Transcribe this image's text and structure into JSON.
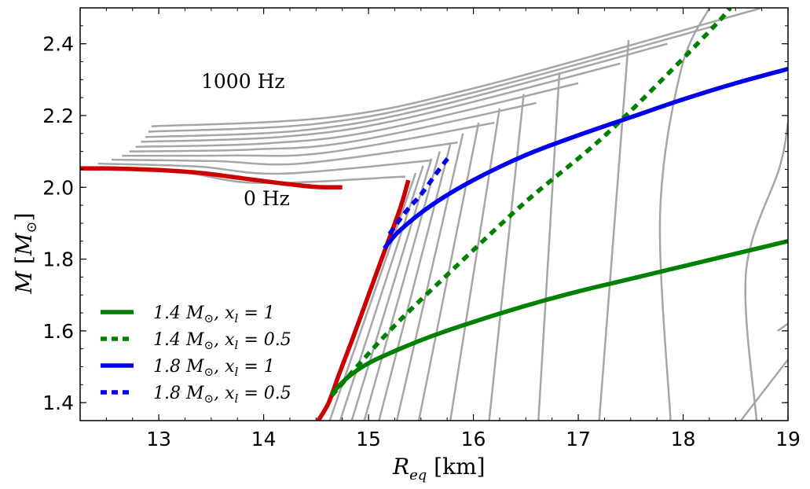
{
  "chart_data": {
    "type": "line",
    "title": "",
    "xlabel": "R_eq [km]",
    "ylabel": "M [M_⊙]",
    "xlabel_main": "R",
    "xlabel_sub": "eq",
    "xlabel_unit": " [km]",
    "ylabel_main": "M",
    "ylabel_unit_open": " [",
    "ylabel_unit": "M",
    "ylabel_unit_sub": "⊙",
    "ylabel_unit_close": "]",
    "xlim": [
      12.25,
      19.0
    ],
    "ylim": [
      1.35,
      2.5
    ],
    "x_ticks": [
      13,
      14,
      15,
      16,
      17,
      18,
      19
    ],
    "y_ticks": [
      1.4,
      1.6,
      1.8,
      2.0,
      2.2,
      2.4
    ],
    "x_tick_labels": [
      "13",
      "14",
      "15",
      "16",
      "17",
      "18",
      "19"
    ],
    "y_tick_labels": [
      "1.4",
      "1.6",
      "1.8",
      "2.0",
      "2.2",
      "2.4"
    ],
    "grid": false,
    "legend_position": "bottom-left",
    "annotations": [
      {
        "text": "1000 Hz",
        "x": 13.4,
        "y": 2.27
      },
      {
        "text": "0 Hz",
        "x": 13.8,
        "y": 1.97
      }
    ],
    "mass_radius_curves": {
      "name": "constant-frequency sequences (0–1000 Hz)",
      "color": "#a6a6a6",
      "bottom_end_x": [
        12.25,
        12.42,
        12.55,
        12.65,
        12.72,
        12.78,
        12.83,
        12.87,
        12.9,
        12.93
      ],
      "bottom_end_y": [
        2.056,
        2.066,
        2.077,
        2.088,
        2.1,
        2.113,
        2.127,
        2.14,
        2.155,
        2.17
      ],
      "top_end_x": [
        15.35,
        15.6,
        15.85,
        16.2,
        16.6,
        17.0,
        17.4,
        17.85,
        18.3,
        18.75
      ],
      "top_end_y": [
        2.03,
        2.075,
        2.125,
        2.18,
        2.235,
        2.29,
        2.345,
        2.4,
        2.45,
        2.5
      ]
    },
    "constant_mass_curves": {
      "name": "constant rest-mass sequences",
      "color": "#a6a6a6",
      "base_x": [
        14.63,
        14.73,
        14.84,
        14.96,
        15.1,
        15.27,
        15.48,
        15.78,
        16.15,
        16.62,
        17.2,
        17.88,
        18.7
      ],
      "base_y": [
        1.35,
        1.35,
        1.35,
        1.35,
        1.35,
        1.35,
        1.35,
        1.35,
        1.35,
        1.35,
        1.35,
        1.35,
        1.35
      ],
      "top_x": [
        15.45,
        15.52,
        15.6,
        15.68,
        15.78,
        15.9,
        16.05,
        16.25,
        16.48,
        16.82,
        17.48,
        18.25,
        19.0
      ],
      "top_y": [
        2.04,
        2.06,
        2.08,
        2.1,
        2.12,
        2.15,
        2.18,
        2.22,
        2.26,
        2.32,
        2.41,
        2.5,
        2.18
      ]
    },
    "series": [
      {
        "name": "0 Hz (non-rotating)",
        "color": "#cc0000",
        "style": "solid",
        "x": [
          12.25,
          12.6,
          13.0,
          13.4,
          13.8,
          14.2,
          14.5,
          14.75
        ],
        "y": [
          2.053,
          2.052,
          2.048,
          2.04,
          2.025,
          2.01,
          2.001,
          2.0
        ]
      },
      {
        "name": "0 Hz lower branch",
        "color": "#cc0000",
        "style": "solid",
        "x": [
          14.52,
          14.62,
          14.72,
          14.85,
          15.0,
          15.15,
          15.3,
          15.38
        ],
        "y": [
          1.35,
          1.4,
          1.48,
          1.58,
          1.7,
          1.82,
          1.94,
          2.02
        ]
      },
      {
        "name": "1.4 M_⊙, x_l = 1",
        "label_main": "1.4 ",
        "label_m": "M",
        "label_sub": "⊙",
        "label_sep": ", ",
        "label_x": "x",
        "label_xsub": "l",
        "label_eq": " = 1",
        "color": "#008000",
        "style": "solid",
        "x": [
          14.65,
          14.8,
          15.0,
          15.3,
          15.6,
          16.0,
          16.5,
          17.0,
          17.5,
          18.0,
          18.5,
          19.0
        ],
        "y": [
          1.425,
          1.47,
          1.51,
          1.55,
          1.585,
          1.625,
          1.67,
          1.71,
          1.745,
          1.78,
          1.815,
          1.85
        ]
      },
      {
        "name": "1.4 M_⊙, x_l = 0.5",
        "label_main": "1.4 ",
        "label_m": "M",
        "label_sub": "⊙",
        "label_sep": ", ",
        "label_x": "x",
        "label_xsub": "l",
        "label_eq": " = 0.5",
        "color": "#008000",
        "style": "dotted",
        "x": [
          14.65,
          15.2,
          15.8,
          16.5,
          17.2,
          17.8,
          18.3,
          18.45
        ],
        "y": [
          1.42,
          1.6,
          1.77,
          1.96,
          2.13,
          2.3,
          2.45,
          2.5
        ]
      },
      {
        "name": "1.8 M_⊙, x_l = 1",
        "label_main": "1.8 ",
        "label_m": "M",
        "label_sub": "⊙",
        "label_sep": ", ",
        "label_x": "x",
        "label_xsub": "l",
        "label_eq": " = 1",
        "color": "#0000ee",
        "style": "solid",
        "x": [
          15.15,
          15.3,
          15.6,
          16.0,
          16.5,
          17.0,
          17.5,
          18.0,
          18.5,
          19.0
        ],
        "y": [
          1.83,
          1.88,
          1.95,
          2.02,
          2.09,
          2.145,
          2.195,
          2.245,
          2.29,
          2.33
        ]
      },
      {
        "name": "1.8 M_⊙, x_l = 0.5",
        "label_main": "1.8 ",
        "label_m": "M",
        "label_sub": "⊙",
        "label_sep": ", ",
        "label_x": "x",
        "label_xsub": "l",
        "label_eq": " = 0.5",
        "color": "#0000ee",
        "style": "dotted",
        "x": [
          15.2,
          15.35,
          15.5,
          15.65,
          15.78
        ],
        "y": [
          1.87,
          1.93,
          1.98,
          2.04,
          2.09
        ]
      }
    ]
  }
}
